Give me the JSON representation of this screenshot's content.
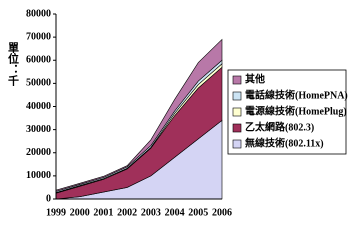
{
  "chart_data": {
    "type": "stacked-area",
    "y_label": "單位：千",
    "categories": [
      "1999",
      "2000",
      "2001",
      "2002",
      "2003",
      "2004",
      "2005",
      "2006"
    ],
    "series": [
      {
        "name": "無線技術(802.11x)",
        "color": "#d4d4f4",
        "values": [
          0,
          1000,
          3000,
          5000,
          10000,
          18000,
          26000,
          34000
        ]
      },
      {
        "name": "乙太網路(802.3)",
        "color": "#a0305a",
        "values": [
          2500,
          4500,
          5500,
          8000,
          12000,
          18000,
          22000,
          23000
        ]
      },
      {
        "name": "電源線技術(HomePlug)",
        "color": "#ffffd0",
        "values": [
          300,
          300,
          300,
          300,
          300,
          1000,
          1500,
          1500
        ]
      },
      {
        "name": "電話線技術(HomePNA)",
        "color": "#cce4f4",
        "values": [
          500,
          500,
          500,
          600,
          800,
          1000,
          1500,
          1500
        ]
      },
      {
        "name": "其他",
        "color": "#b878a8",
        "values": [
          500,
          500,
          500,
          500,
          2500,
          5000,
          8000,
          9000
        ]
      }
    ],
    "ylim": [
      0,
      80000
    ],
    "yticks": [
      0,
      10000,
      20000,
      30000,
      40000,
      50000,
      60000,
      70000,
      80000
    ]
  }
}
